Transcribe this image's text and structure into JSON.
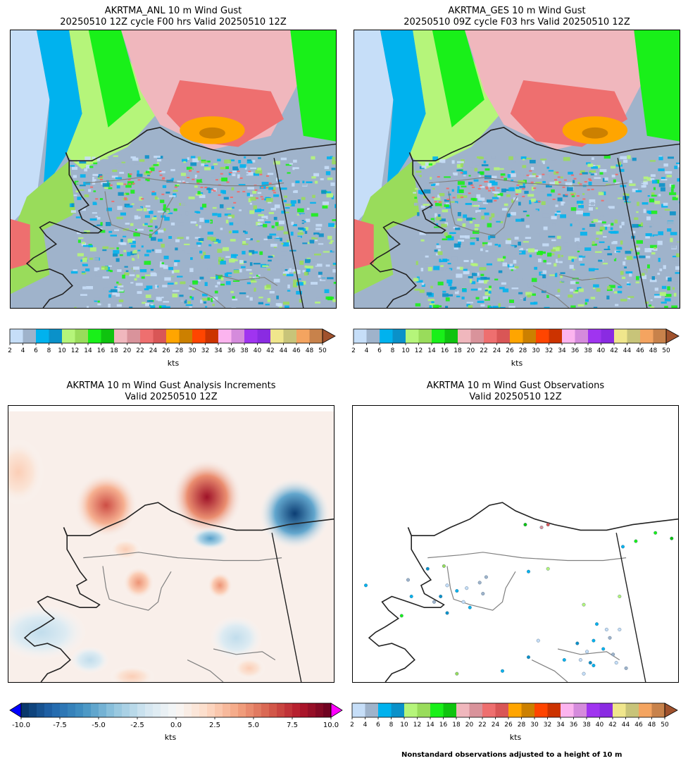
{
  "panels": {
    "anl": {
      "title1": "AKRTMA_ANL 10 m Wind Gust",
      "title2": "20250510 12Z cycle F00 hrs Valid 20250510 12Z"
    },
    "ges": {
      "title1": "AKRTMA_GES 10 m Wind Gust",
      "title2": "20250510 09Z cycle F03 hrs Valid 20250510 12Z"
    },
    "inc": {
      "title1": "AKRTMA 10 m Wind Gust Analysis Increments",
      "title2": "Valid 20250510 12Z"
    },
    "obs": {
      "title1": "AKRTMA 10 m Wind Gust Observations",
      "title2": "Valid 20250510 12Z"
    }
  },
  "colorbar_gust": {
    "units": "kts",
    "ticks": [
      "2",
      "4",
      "6",
      "8",
      "10",
      "12",
      "14",
      "16",
      "18",
      "20",
      "22",
      "24",
      "26",
      "28",
      "30",
      "32",
      "34",
      "36",
      "38",
      "40",
      "42",
      "44",
      "46",
      "48",
      "50"
    ],
    "colors": [
      "#c6def8",
      "#9fb3cb",
      "#00b2ee",
      "#0a91c9",
      "#b5f57a",
      "#99dc5b",
      "#19f019",
      "#0fc30f",
      "#f0b7bd",
      "#d9939b",
      "#ee6f6f",
      "#d95656",
      "#ffa500",
      "#cc8000",
      "#ff4500",
      "#cc3300",
      "#fcb4ef",
      "#d58bdc",
      "#a034f0",
      "#8a2be2",
      "#f0e68c",
      "#c8c479",
      "#f4a460",
      "#c8824b"
    ],
    "extend_color": "#a0522d"
  },
  "colorbar_inc": {
    "units": "kts",
    "ticks": [
      "-10.0",
      "-7.5",
      "-5.0",
      "-2.5",
      "0.0",
      "2.5",
      "5.0",
      "7.5",
      "10.0"
    ],
    "extend_low_color": "#0000ff",
    "extend_high_color": "#ff00ff"
  },
  "footnote": "Nonstandard observations adjusted to a height of 10 m"
}
